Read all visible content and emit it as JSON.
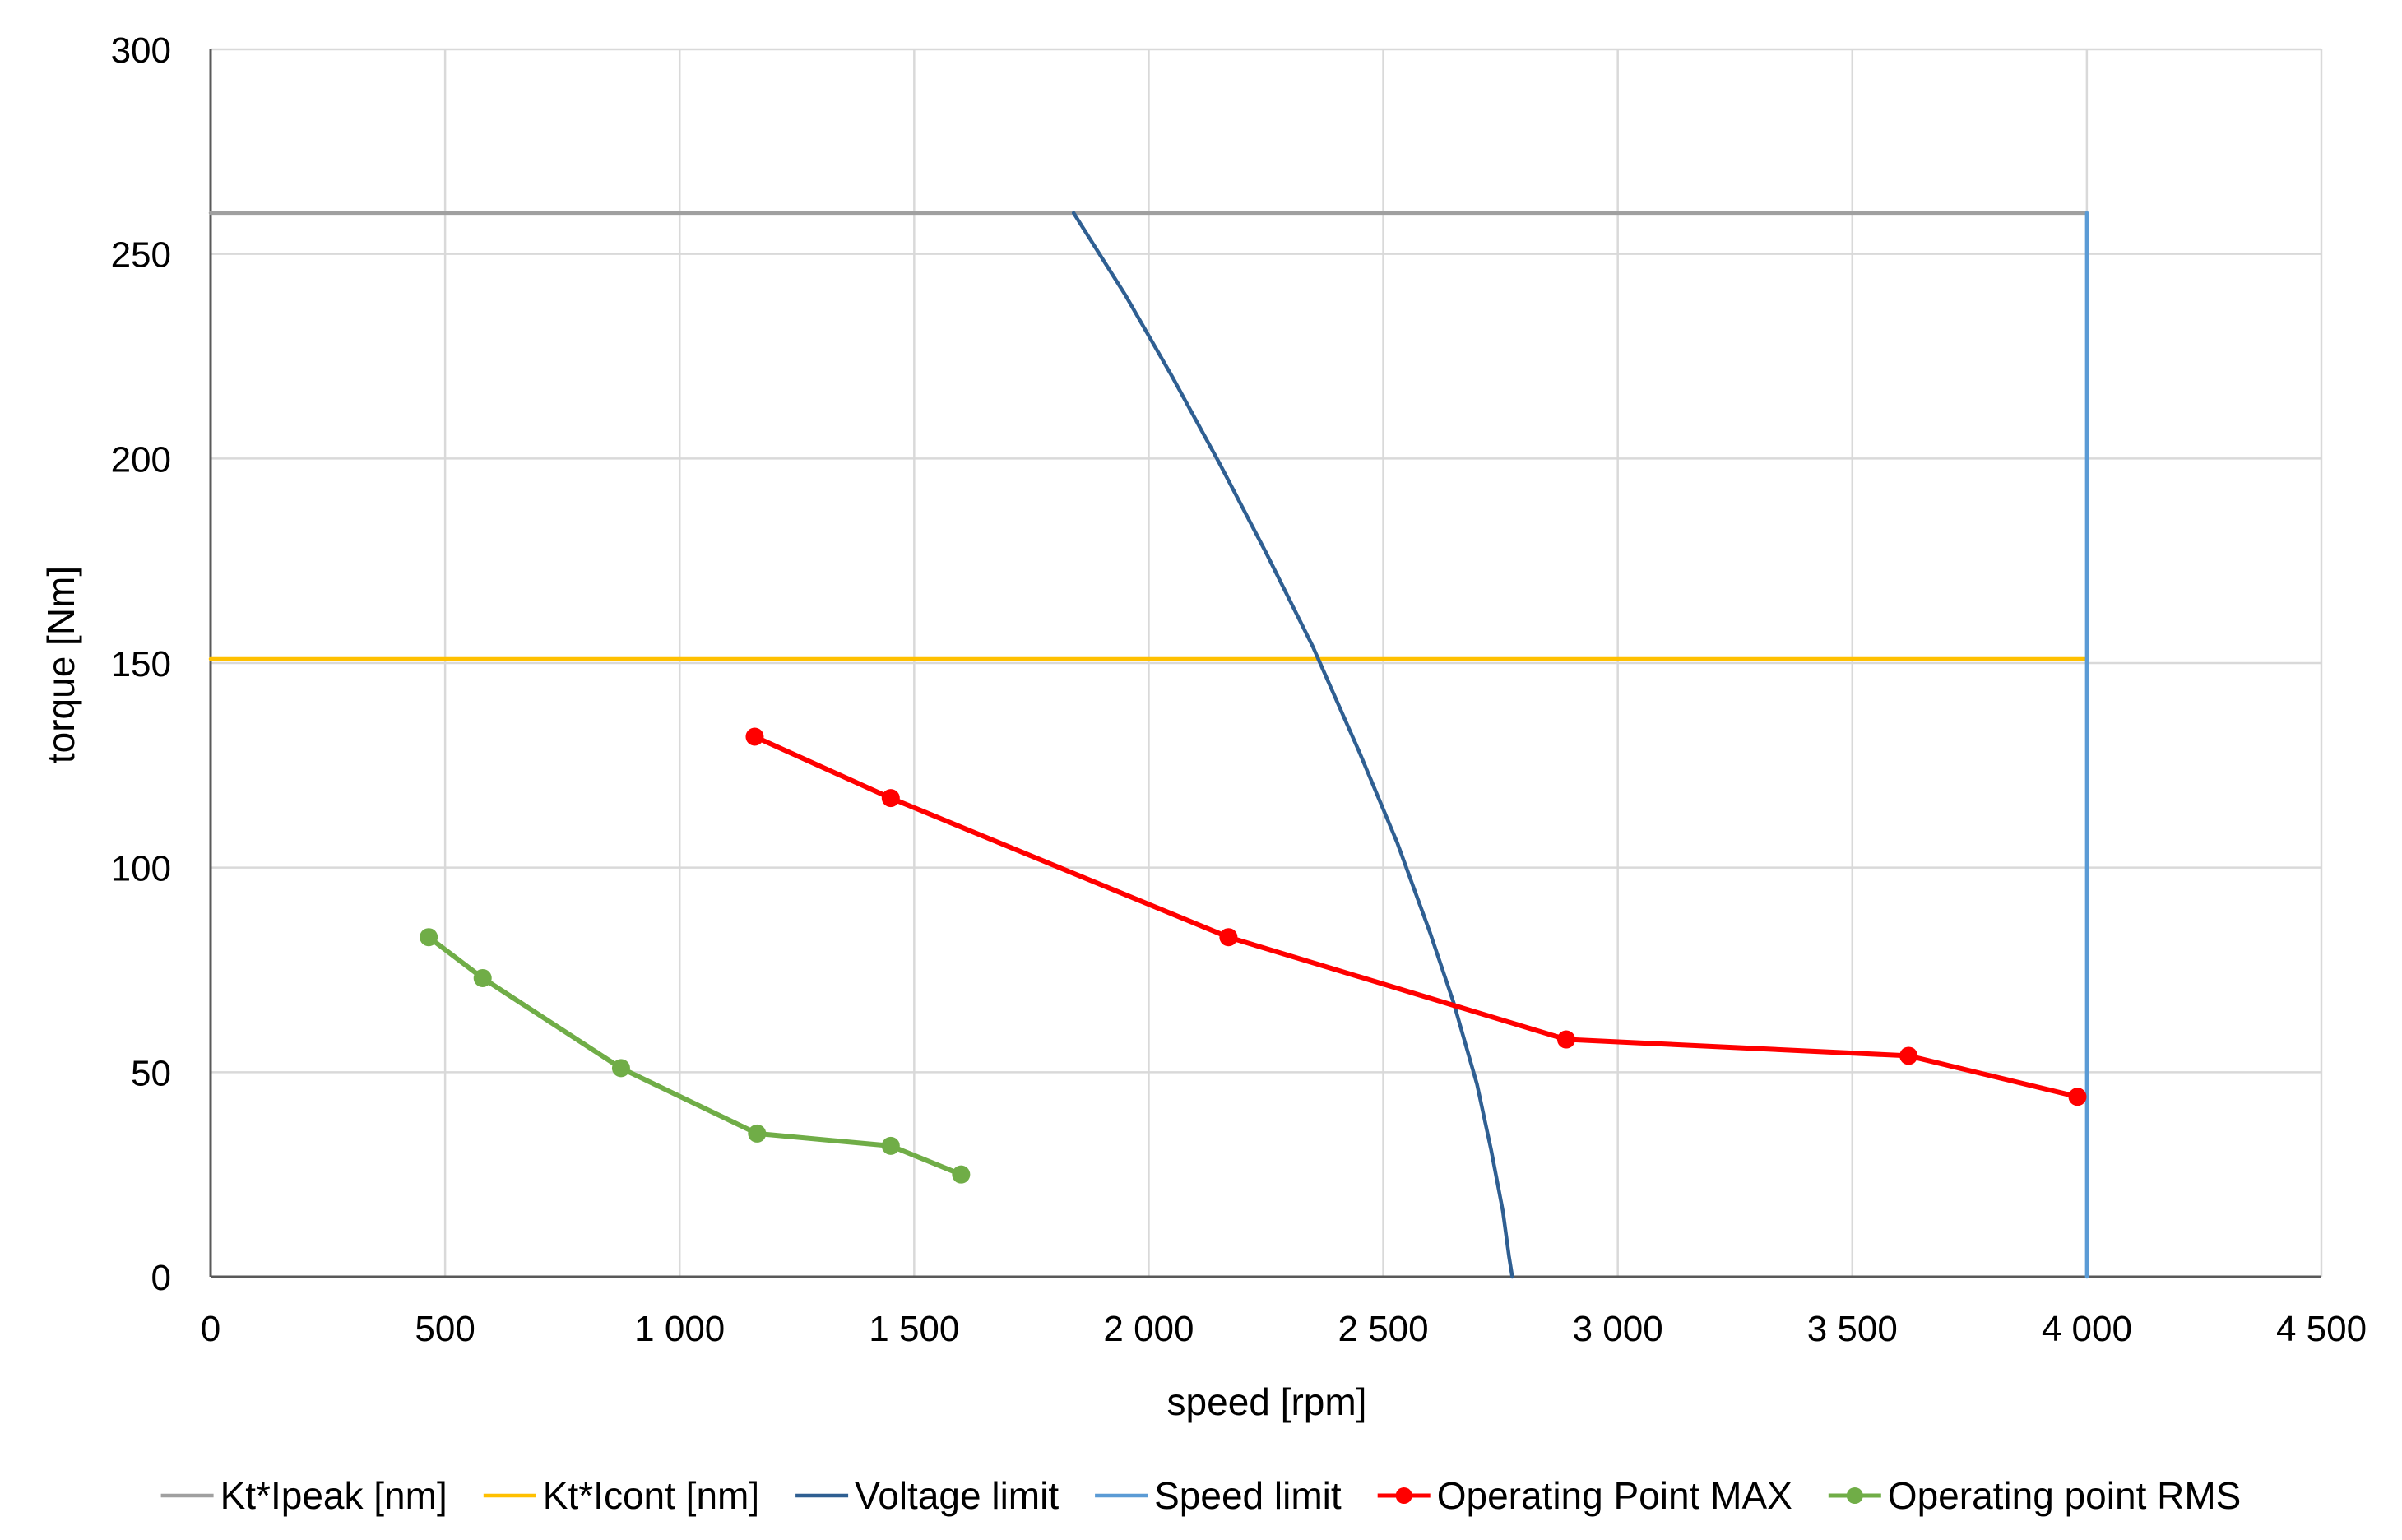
{
  "chart_data": {
    "type": "line",
    "title": "",
    "xlabel": "speed [rpm]",
    "ylabel": "torque [Nm]",
    "xlim": [
      0,
      4500
    ],
    "ylim": [
      0,
      300
    ],
    "x_ticks": [
      0,
      500,
      1000,
      1500,
      2000,
      2500,
      3000,
      3500,
      4000,
      4500
    ],
    "x_tick_labels": [
      "0",
      "500",
      "1 000",
      "1 500",
      "2 000",
      "2 500",
      "3 000",
      "3 500",
      "4 000",
      "4 500"
    ],
    "y_ticks": [
      0,
      50,
      100,
      150,
      200,
      250,
      300
    ],
    "y_tick_labels": [
      "0",
      "50",
      "100",
      "150",
      "200",
      "250",
      "300"
    ],
    "grid": true,
    "legend_position": "bottom",
    "series": [
      {
        "name": "Kt*Ipeak [nm]",
        "color": "#a0a0a0",
        "markers": false,
        "x": [
          0,
          4000
        ],
        "y": [
          260,
          260
        ]
      },
      {
        "name": "Kt*Icont [nm]",
        "color": "#ffc000",
        "markers": false,
        "x": [
          0,
          4000
        ],
        "y": [
          151,
          151
        ]
      },
      {
        "name": "Voltage limit",
        "color": "#2f5f92",
        "markers": false,
        "x": [
          1840,
          1950,
          2050,
          2150,
          2250,
          2350,
          2450,
          2530,
          2600,
          2650,
          2700,
          2730,
          2755,
          2768,
          2775
        ],
        "y": [
          260,
          240,
          220,
          199,
          177,
          154,
          128,
          106,
          84,
          67,
          47,
          31,
          16,
          5,
          0
        ]
      },
      {
        "name": "Speed limit",
        "color": "#5b9bd5",
        "markers": false,
        "x": [
          4000,
          4000
        ],
        "y": [
          0,
          260
        ]
      },
      {
        "name": "Operating Point MAX",
        "color": "#ff0000",
        "markers": true,
        "x": [
          1160,
          1450,
          2170,
          2890,
          3620,
          3980
        ],
        "y": [
          132,
          117,
          83,
          58,
          54,
          44
        ]
      },
      {
        "name": "Operating point RMS",
        "color": "#70ad47",
        "markers": true,
        "x": [
          465,
          580,
          875,
          1165,
          1450,
          1600
        ],
        "y": [
          83,
          73,
          51,
          35,
          32,
          25
        ]
      }
    ]
  }
}
